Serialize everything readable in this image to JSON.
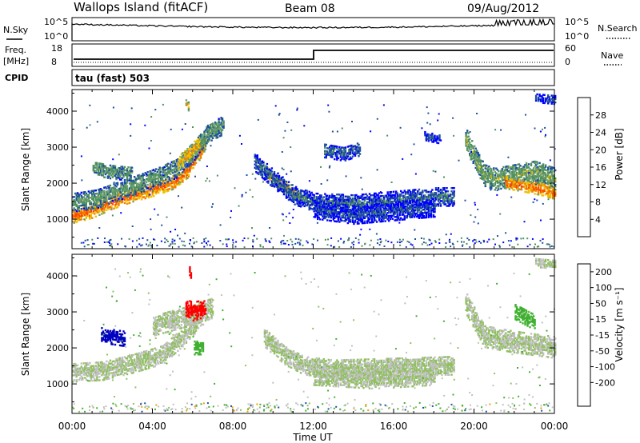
{
  "header": {
    "station": "Wallops Island (fitACF)",
    "beam": "Beam 08",
    "date": "09/Aug/2012"
  },
  "noise_panel": {
    "left_label": "N.Sky",
    "right_label": "N.Search",
    "tick_top": "10^5",
    "tick_bottom": "10^0"
  },
  "freq_panel": {
    "left_label_line1": "Freq.",
    "left_label_line2": "[MHz]",
    "right_label": "Nave",
    "left_tick_top": "18",
    "left_tick_bottom": "8",
    "right_tick_top": "60",
    "right_tick_bottom": "0"
  },
  "cpid": {
    "label": "CPID",
    "value": "tau (fast) 503"
  },
  "colors": {
    "power": [
      "#0000ff",
      "#1f4fa0",
      "#4f8f5f",
      "#6fa06f",
      "#f0c000",
      "#f08000",
      "#ff4000",
      "#ff0000"
    ],
    "velocity": [
      "#ff0000",
      "#f06000",
      "#f0a000",
      "#c0c0c0",
      "#c0c0c0",
      "#90c060",
      "#40b030",
      "#1f4fa0",
      "#0000c0"
    ]
  },
  "chart_data": [
    {
      "type": "heatmap",
      "panel": "power",
      "ylabel": "Slant Range [km]",
      "xlabel": "Time UT",
      "x_ticks": [
        "00:00",
        "04:00",
        "08:00",
        "12:00",
        "16:00",
        "20:00",
        "00:00"
      ],
      "y_ticks": [
        1000,
        2000,
        3000,
        4000
      ],
      "ylim": [
        180,
        4600
      ],
      "xlim_hours": [
        0,
        24
      ],
      "colorbar": {
        "label": "Power [dB]",
        "ticks": [
          "4",
          "8",
          "12",
          "16",
          "20",
          "24",
          "28"
        ],
        "range": [
          0,
          32
        ]
      },
      "features": [
        {
          "points": [
            [
              0.0,
              1050
            ],
            [
              1.0,
              1200
            ],
            [
              2.0,
              1450
            ],
            [
              3.0,
              1650
            ],
            [
              4.0,
              1800
            ],
            [
              5.0,
              2000
            ],
            [
              5.7,
              2300
            ],
            [
              6.2,
              2700
            ],
            [
              6.6,
              3100
            ]
          ],
          "width": 180,
          "value": 24
        },
        {
          "points": [
            [
              0.0,
              1450
            ],
            [
              1.2,
              1550
            ],
            [
              2.2,
              1750
            ],
            [
              3.2,
              1950
            ],
            [
              4.2,
              2150
            ],
            [
              5.2,
              2400
            ],
            [
              6.0,
              2850
            ],
            [
              6.8,
              3400
            ],
            [
              7.5,
              3600
            ]
          ],
          "width": 260,
          "value": 12
        },
        {
          "points": [
            [
              5.2,
              2500
            ],
            [
              5.8,
              2800
            ],
            [
              6.3,
              3100
            ]
          ],
          "width": 220,
          "value": 20
        },
        {
          "points": [
            [
              9.6,
              2300
            ],
            [
              10.2,
              2000
            ],
            [
              10.8,
              1800
            ],
            [
              11.4,
              1550
            ]
          ],
          "width": 160,
          "value": 22
        },
        {
          "points": [
            [
              9.0,
              2600
            ],
            [
              10.0,
              2100
            ],
            [
              11.0,
              1650
            ],
            [
              12.0,
              1450
            ],
            [
              14.0,
              1400
            ],
            [
              16.0,
              1500
            ],
            [
              18.0,
              1600
            ],
            [
              19.0,
              1600
            ]
          ],
          "width": 250,
          "value": 8
        },
        {
          "points": [
            [
              12.0,
              1250
            ],
            [
              14.0,
              1100
            ],
            [
              16.0,
              1200
            ],
            [
              18.0,
              1300
            ]
          ],
          "width": 250,
          "value": 6
        },
        {
          "points": [
            [
              19.5,
              3300
            ],
            [
              20.0,
              2700
            ],
            [
              20.5,
              2200
            ],
            [
              21.0,
              2100
            ],
            [
              22.0,
              2200
            ],
            [
              23.0,
              2300
            ],
            [
              24.0,
              2100
            ]
          ],
          "width": 300,
          "value": 14
        },
        {
          "points": [
            [
              21.5,
              2000
            ],
            [
              22.5,
              1900
            ],
            [
              23.4,
              1800
            ],
            [
              24.0,
              1700
            ]
          ],
          "width": 160,
          "value": 24
        },
        {
          "points": [
            [
              12.5,
              2900
            ],
            [
              13.5,
              2800
            ],
            [
              14.3,
              2950
            ]
          ],
          "width": 200,
          "value": 8
        },
        {
          "points": [
            [
              17.5,
              3300
            ],
            [
              18.3,
              3200
            ]
          ],
          "width": 120,
          "value": 6
        },
        {
          "points": [
            [
              1.0,
              2400
            ],
            [
              2.0,
              2300
            ],
            [
              3.0,
              2250
            ]
          ],
          "width": 200,
          "value": 12
        },
        {
          "points": [
            [
              23.0,
              4350
            ],
            [
              24.0,
              4300
            ]
          ],
          "width": 120,
          "value": 6
        },
        {
          "points": [
            [
              5.6,
              4200
            ],
            [
              5.8,
              4100
            ]
          ],
          "width": 120,
          "value": 18
        }
      ]
    },
    {
      "type": "heatmap",
      "panel": "velocity",
      "ylabel": "Slant Range [km]",
      "xlabel": "Time UT",
      "x_ticks": [
        "00:00",
        "04:00",
        "08:00",
        "12:00",
        "16:00",
        "20:00",
        "00:00"
      ],
      "y_ticks": [
        1000,
        2000,
        3000,
        4000
      ],
      "ylim": [
        180,
        4600
      ],
      "xlim_hours": [
        0,
        24
      ],
      "colorbar": {
        "label": "Velocity [m s⁻¹]",
        "ticks": [
          "-200",
          "-100",
          "-50",
          "-15",
          "15",
          "50",
          "100",
          "200"
        ]
      },
      "features": [
        {
          "points": [
            [
              0.0,
              1300
            ],
            [
              1.5,
              1350
            ],
            [
              3.0,
              1550
            ],
            [
              4.5,
              1800
            ],
            [
              5.5,
              2300
            ],
            [
              6.5,
              2900
            ]
          ],
          "width": 260,
          "value": 0
        },
        {
          "points": [
            [
              4.0,
              2600
            ],
            [
              5.0,
              2750
            ],
            [
              6.0,
              2900
            ],
            [
              7.0,
              3100
            ]
          ],
          "width": 280,
          "value": 0
        },
        {
          "points": [
            [
              1.4,
              2350
            ],
            [
              2.0,
              2300
            ],
            [
              2.6,
              2250
            ]
          ],
          "width": 220,
          "value": 150
        },
        {
          "points": [
            [
              5.6,
              3100
            ],
            [
              6.0,
              3000
            ],
            [
              6.6,
              3100
            ]
          ],
          "width": 260,
          "value": -220
        },
        {
          "points": [
            [
              5.8,
              4200
            ],
            [
              5.9,
              4000
            ]
          ],
          "width": 160,
          "value": -220
        },
        {
          "points": [
            [
              9.5,
              2300
            ],
            [
              10.5,
              1800
            ],
            [
              11.5,
              1500
            ],
            [
              13.0,
              1400
            ],
            [
              16.0,
              1450
            ],
            [
              19.0,
              1500
            ]
          ],
          "width": 260,
          "value": 0
        },
        {
          "points": [
            [
              12.0,
              1200
            ],
            [
              15.0,
              1100
            ],
            [
              18.0,
              1200
            ]
          ],
          "width": 250,
          "value": 0
        },
        {
          "points": [
            [
              19.5,
              3300
            ],
            [
              20.5,
              2300
            ],
            [
              22.0,
              2150
            ],
            [
              24.0,
              2000
            ]
          ],
          "width": 300,
          "value": 0
        },
        {
          "points": [
            [
              22.0,
              3000
            ],
            [
              23.0,
              2700
            ]
          ],
          "width": 220,
          "value": 30
        },
        {
          "points": [
            [
              6.0,
              2000
            ],
            [
              6.5,
              2000
            ]
          ],
          "width": 200,
          "value": 30
        },
        {
          "points": [
            [
              23.0,
              4350
            ],
            [
              24.0,
              4300
            ]
          ],
          "width": 120,
          "value": 0
        }
      ]
    }
  ]
}
